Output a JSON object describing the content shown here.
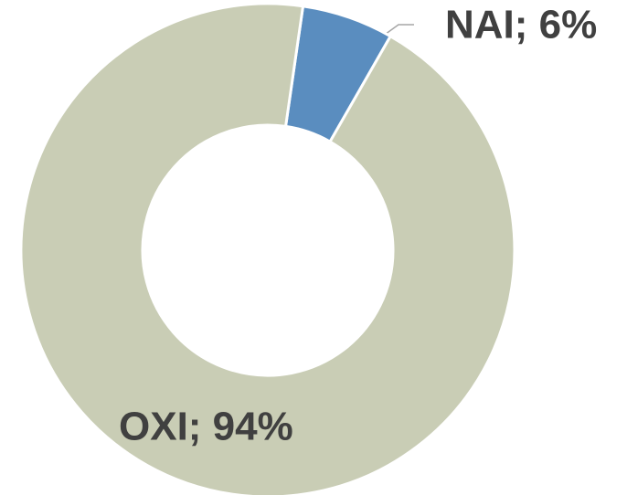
{
  "chart_data": {
    "type": "donut",
    "categories": [
      "NAI",
      "OXI"
    ],
    "values": [
      6,
      94
    ],
    "value_labels": [
      "NAI; 6%",
      "OXI; 94%"
    ],
    "colors": [
      "#5a8dbf",
      "#c9cdb5"
    ]
  }
}
